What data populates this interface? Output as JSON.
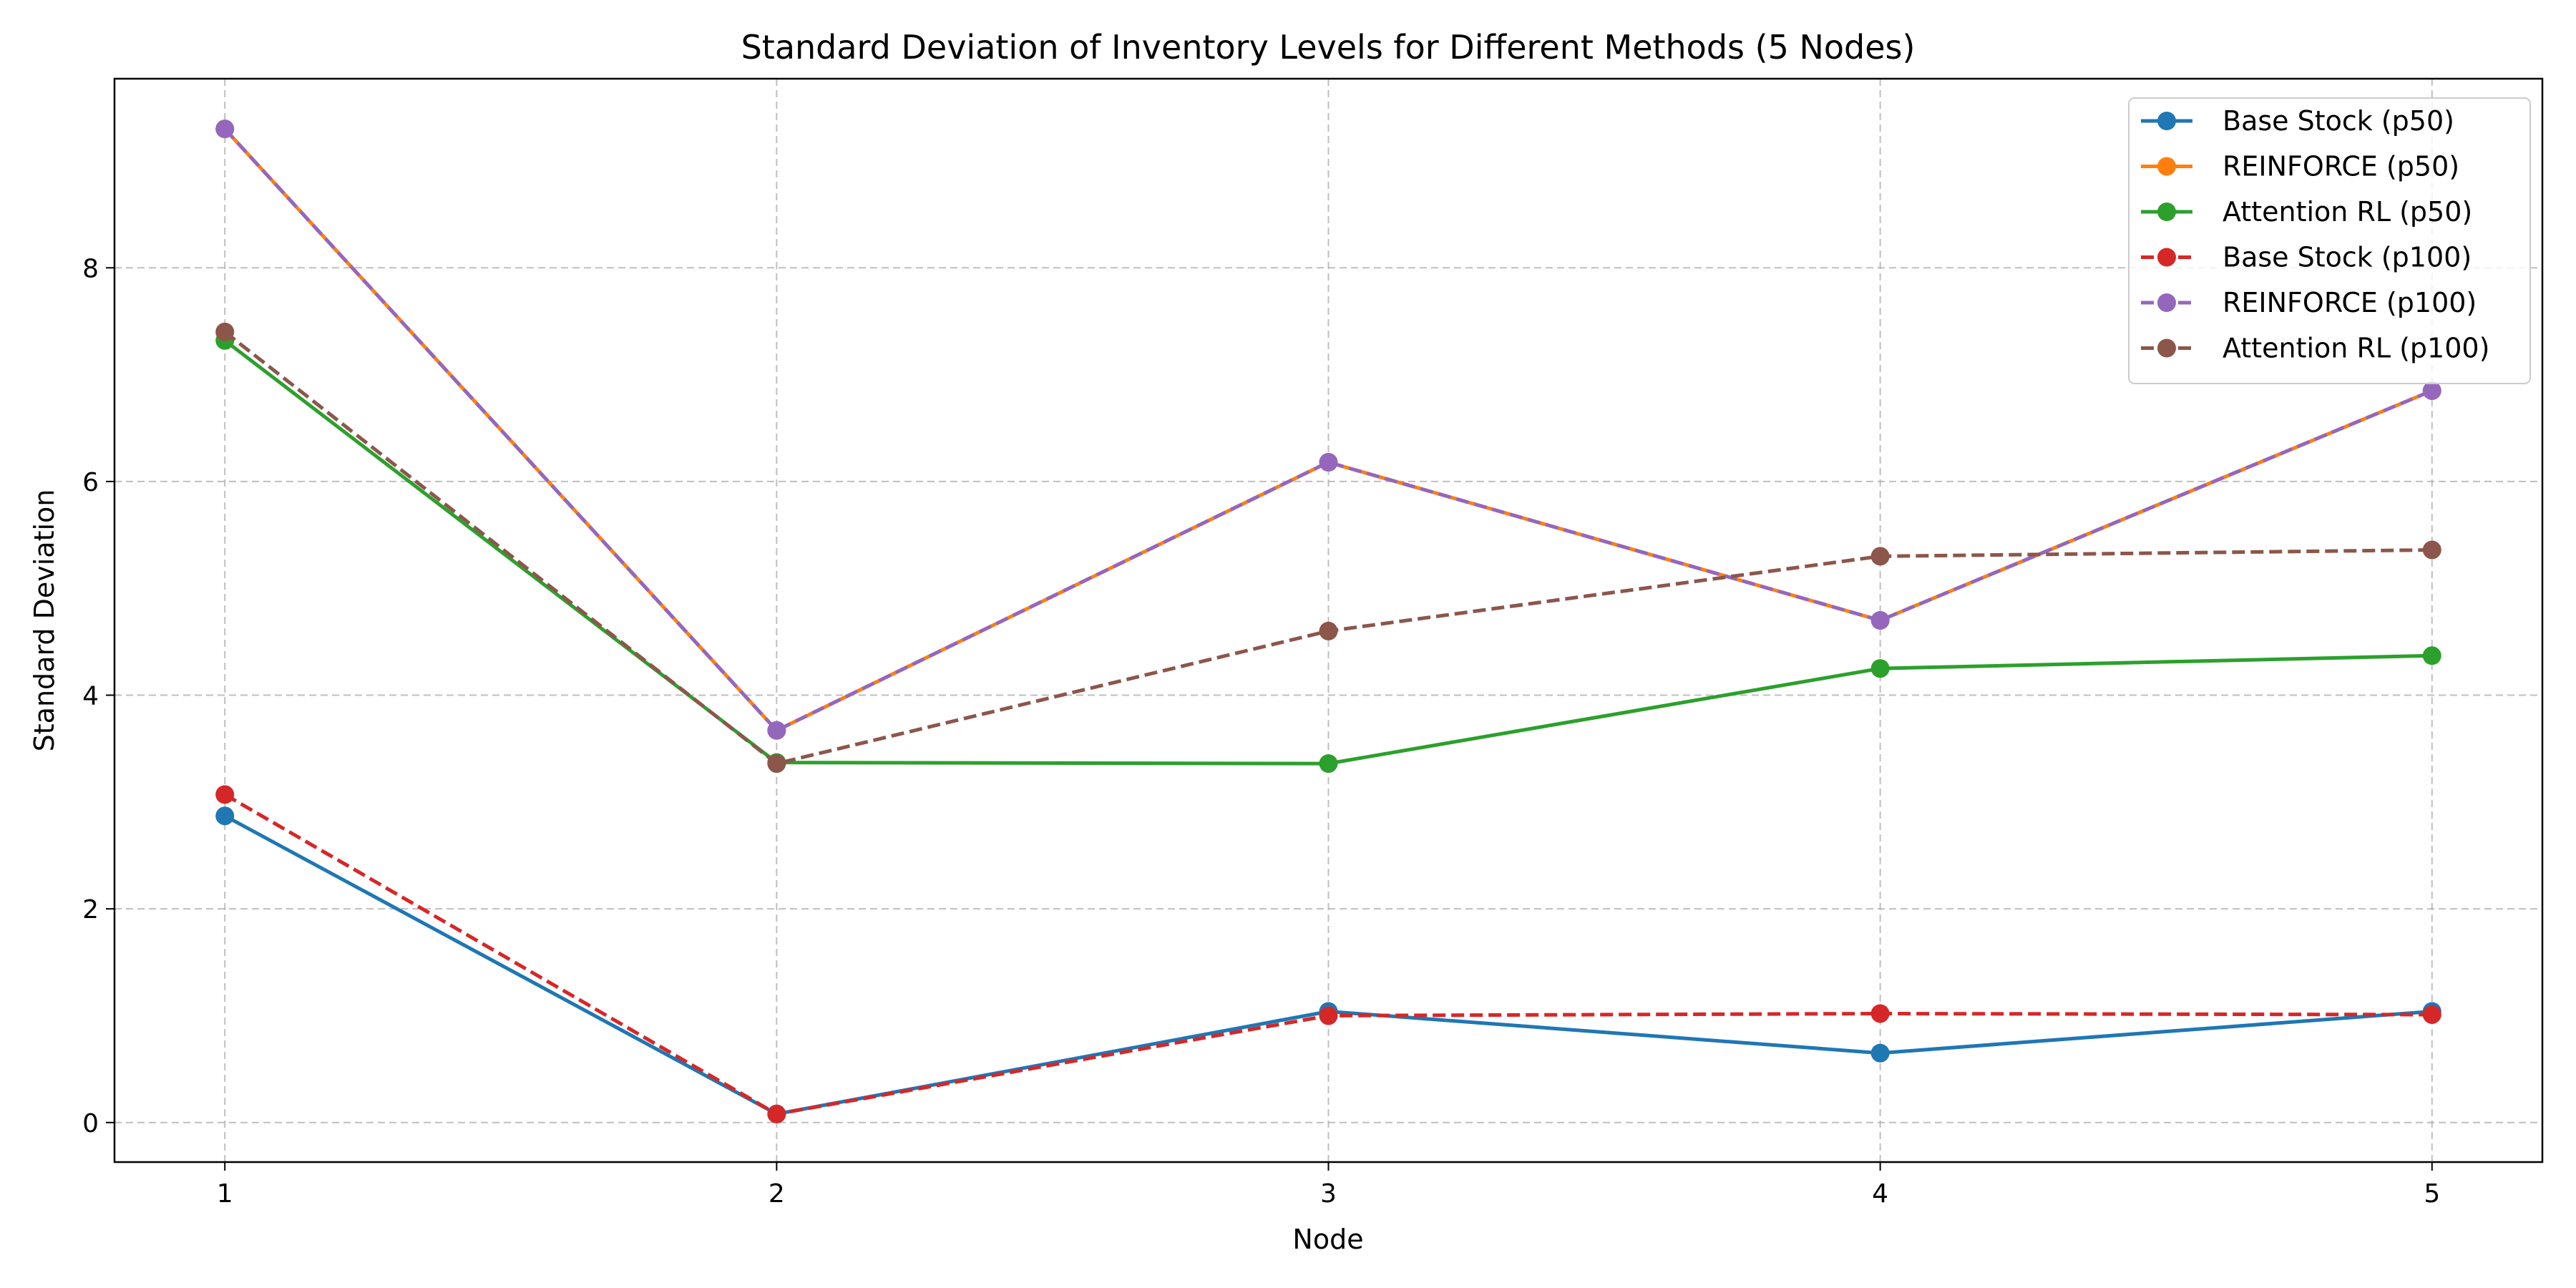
{
  "chart_data": {
    "type": "line",
    "title": "Standard Deviation of Inventory Levels for Different Methods (5 Nodes)",
    "xlabel": "Node",
    "ylabel": "Standard Deviation",
    "x": [
      1,
      2,
      3,
      4,
      5
    ],
    "x_ticks": [
      "1",
      "2",
      "3",
      "4",
      "5"
    ],
    "y_ticks": [
      "0",
      "2",
      "4",
      "6",
      "8"
    ],
    "xlim": [
      0.8,
      5.2
    ],
    "ylim": [
      -0.37,
      9.77
    ],
    "grid": true,
    "legend_position": "top-right",
    "series": [
      {
        "name": "Base Stock (p50)",
        "values": [
          2.87,
          0.08,
          1.04,
          0.65,
          1.04
        ],
        "color": "#1f77b4",
        "dashed": false
      },
      {
        "name": "REINFORCE (p50)",
        "values": [
          9.3,
          3.67,
          6.18,
          4.7,
          6.85
        ],
        "color": "#ff7f0e",
        "dashed": false
      },
      {
        "name": "Attention RL (p50)",
        "values": [
          7.32,
          3.37,
          3.36,
          4.25,
          4.37
        ],
        "color": "#2ca02c",
        "dashed": false
      },
      {
        "name": "Base Stock (p100)",
        "values": [
          3.07,
          0.08,
          1.0,
          1.02,
          1.01
        ],
        "color": "#d62728",
        "dashed": true
      },
      {
        "name": "REINFORCE (p100)",
        "values": [
          9.3,
          3.67,
          6.18,
          4.7,
          6.85
        ],
        "color": "#9467bd",
        "dashed": true
      },
      {
        "name": "Attention RL (p100)",
        "values": [
          7.4,
          3.36,
          4.6,
          5.3,
          5.36
        ],
        "color": "#8c564b",
        "dashed": true
      }
    ]
  }
}
